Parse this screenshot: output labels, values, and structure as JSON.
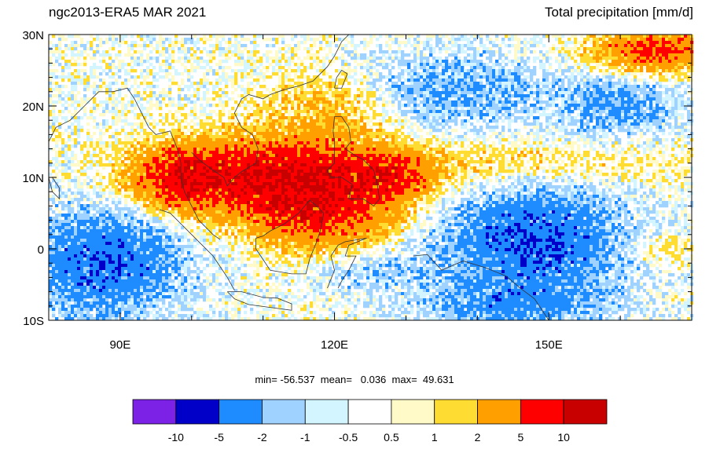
{
  "title_left": "ngc2013-ERA5 MAR 2021",
  "title_right": "Total precipitation [mm/d]",
  "map": {
    "lat_ticks": [
      "30N",
      "20N",
      "10N",
      "0",
      "10S"
    ],
    "lon_ticks": [
      "90E",
      "120E",
      "150E"
    ],
    "lon_range": [
      80,
      170
    ],
    "lat_range": [
      -10,
      30
    ]
  },
  "stats": {
    "text": "min= -56.537  mean=   0.036  max=  49.631"
  },
  "colorbar": {
    "colors": [
      "#7b22e6",
      "#0000c8",
      "#1e8cff",
      "#a0d2ff",
      "#d2f5ff",
      "#ffffff",
      "#fffac8",
      "#ffdc32",
      "#ffa000",
      "#ff0000",
      "#c80000"
    ],
    "labels": [
      "-10",
      "-5",
      "-2",
      "-1",
      "-0.5",
      "0.5",
      "1",
      "2",
      "5",
      "10"
    ]
  }
}
